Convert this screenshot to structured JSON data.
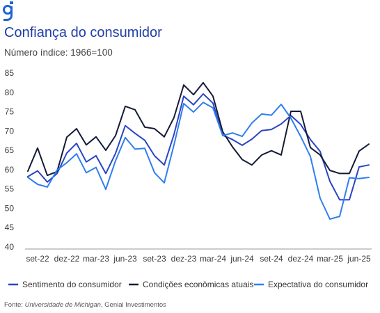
{
  "brand_logo": "g-logo",
  "title": "Confiança do consumidor",
  "subtitle": "Número índice: 1966=100",
  "source": {
    "prefix": "Fonte: ",
    "italic": "Universidade de Michigan",
    "suffix": ", Genial Investimentos"
  },
  "colors": {
    "title": "#1f3fa8",
    "logo": "#1e63d6"
  },
  "chart_data": {
    "type": "line",
    "title": "Confiança do consumidor",
    "subtitle": "Número índice: 1966=100",
    "x_tick_labels": [
      "set-22",
      "dez-22",
      "mar-23",
      "jun-23",
      "set-23",
      "dez-23",
      "mar-24",
      "jun-24",
      "set-24",
      "dez-24",
      "mar-25",
      "jun-25"
    ],
    "y_ticks": [
      40,
      45,
      50,
      55,
      60,
      65,
      70,
      75,
      80,
      85
    ],
    "ylim": [
      40,
      85
    ],
    "grid": false,
    "legend_position": "bottom",
    "x": [
      "ago-22",
      "set-22",
      "out-22",
      "nov-22",
      "dez-22",
      "jan-23",
      "fev-23",
      "mar-23",
      "abr-23",
      "mai-23",
      "jun-23",
      "jul-23",
      "ago-23",
      "set-23",
      "out-23",
      "nov-23",
      "dez-23",
      "jan-24",
      "fev-24",
      "mar-24",
      "abr-24",
      "mai-24",
      "jun-24",
      "jul-24",
      "ago-24",
      "set-24",
      "out-24",
      "nov-24",
      "dez-24",
      "jan-25",
      "fev-25",
      "mar-25",
      "abr-25",
      "mai-25",
      "jun-25",
      "jul-25"
    ],
    "series": [
      {
        "name": "Sentimento do consumidor",
        "color": "#2a45c2",
        "values": [
          58.2,
          59.7,
          56.8,
          59.0,
          64.3,
          66.8,
          62.0,
          63.6,
          59.0,
          64.2,
          71.4,
          69.4,
          67.6,
          63.6,
          61.2,
          69.1,
          79.0,
          76.8,
          79.6,
          77.2,
          68.9,
          67.8,
          66.3,
          67.9,
          70.1,
          70.4,
          71.8,
          74.0,
          71.7,
          67.8,
          64.7,
          57.0,
          52.2,
          52.2,
          60.7,
          61.2
        ]
      },
      {
        "name": "Condições econômicas atuais",
        "color": "#141b38",
        "values": [
          59.6,
          65.6,
          58.5,
          59.5,
          68.4,
          70.6,
          66.4,
          68.5,
          65.0,
          68.8,
          76.4,
          75.5,
          71.0,
          70.6,
          68.5,
          73.5,
          81.9,
          79.4,
          82.5,
          79.0,
          69.8,
          65.9,
          62.6,
          61.2,
          63.8,
          64.9,
          63.8,
          75.1,
          75.1,
          65.7,
          63.8,
          59.8,
          59.0,
          59.0,
          64.8,
          66.6
        ]
      },
      {
        "name": "Expectativa do consumidor",
        "color": "#2f7ef0",
        "values": [
          58.0,
          56.2,
          55.5,
          59.9,
          61.8,
          64.1,
          59.2,
          60.6,
          54.9,
          62.3,
          68.3,
          65.3,
          65.5,
          59.2,
          56.6,
          66.4,
          77.1,
          74.9,
          77.4,
          76.0,
          68.8,
          69.5,
          68.6,
          72.1,
          74.4,
          74.1,
          76.9,
          73.3,
          68.6,
          63.4,
          52.6,
          47.2,
          47.9,
          57.9,
          57.7,
          58.0
        ]
      }
    ]
  }
}
